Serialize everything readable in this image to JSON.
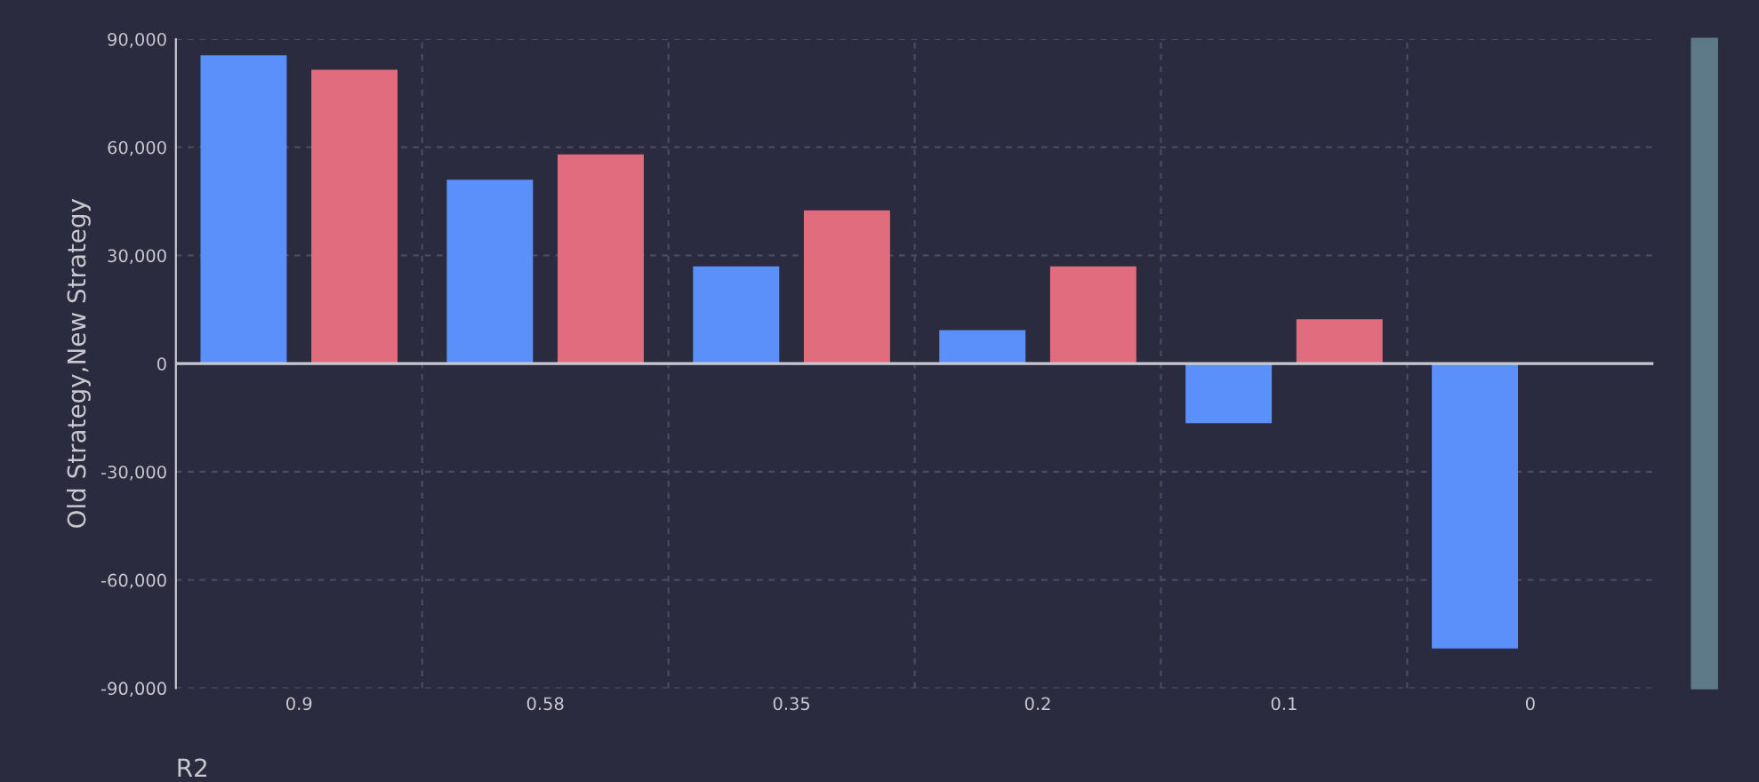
{
  "chart_data": {
    "type": "bar",
    "xlabel": "R2",
    "ylabel": "Old Strategy,New Strategy",
    "categories": [
      "0.9",
      "0.58",
      "0.35",
      "0.2",
      "0.1",
      "0"
    ],
    "series": [
      {
        "color": "#5b8ff9",
        "values": [
          85500,
          51000,
          27000,
          9300,
          -16500,
          -79000
        ]
      },
      {
        "color": "#e06c7d",
        "values": [
          81500,
          58000,
          42500,
          27000,
          12300,
          null
        ]
      }
    ],
    "ylim": [
      -90000,
      90000
    ],
    "yticks": [
      {
        "value": -90000,
        "label": "-90,000"
      },
      {
        "value": -60000,
        "label": "-60,000"
      },
      {
        "value": -30000,
        "label": "-30,000"
      },
      0,
      {
        "value": 30000,
        "label": "30,000"
      },
      {
        "value": 60000,
        "label": "60,000"
      },
      {
        "value": 90000,
        "label": "90,000"
      }
    ],
    "grid": true,
    "legend": false
  }
}
